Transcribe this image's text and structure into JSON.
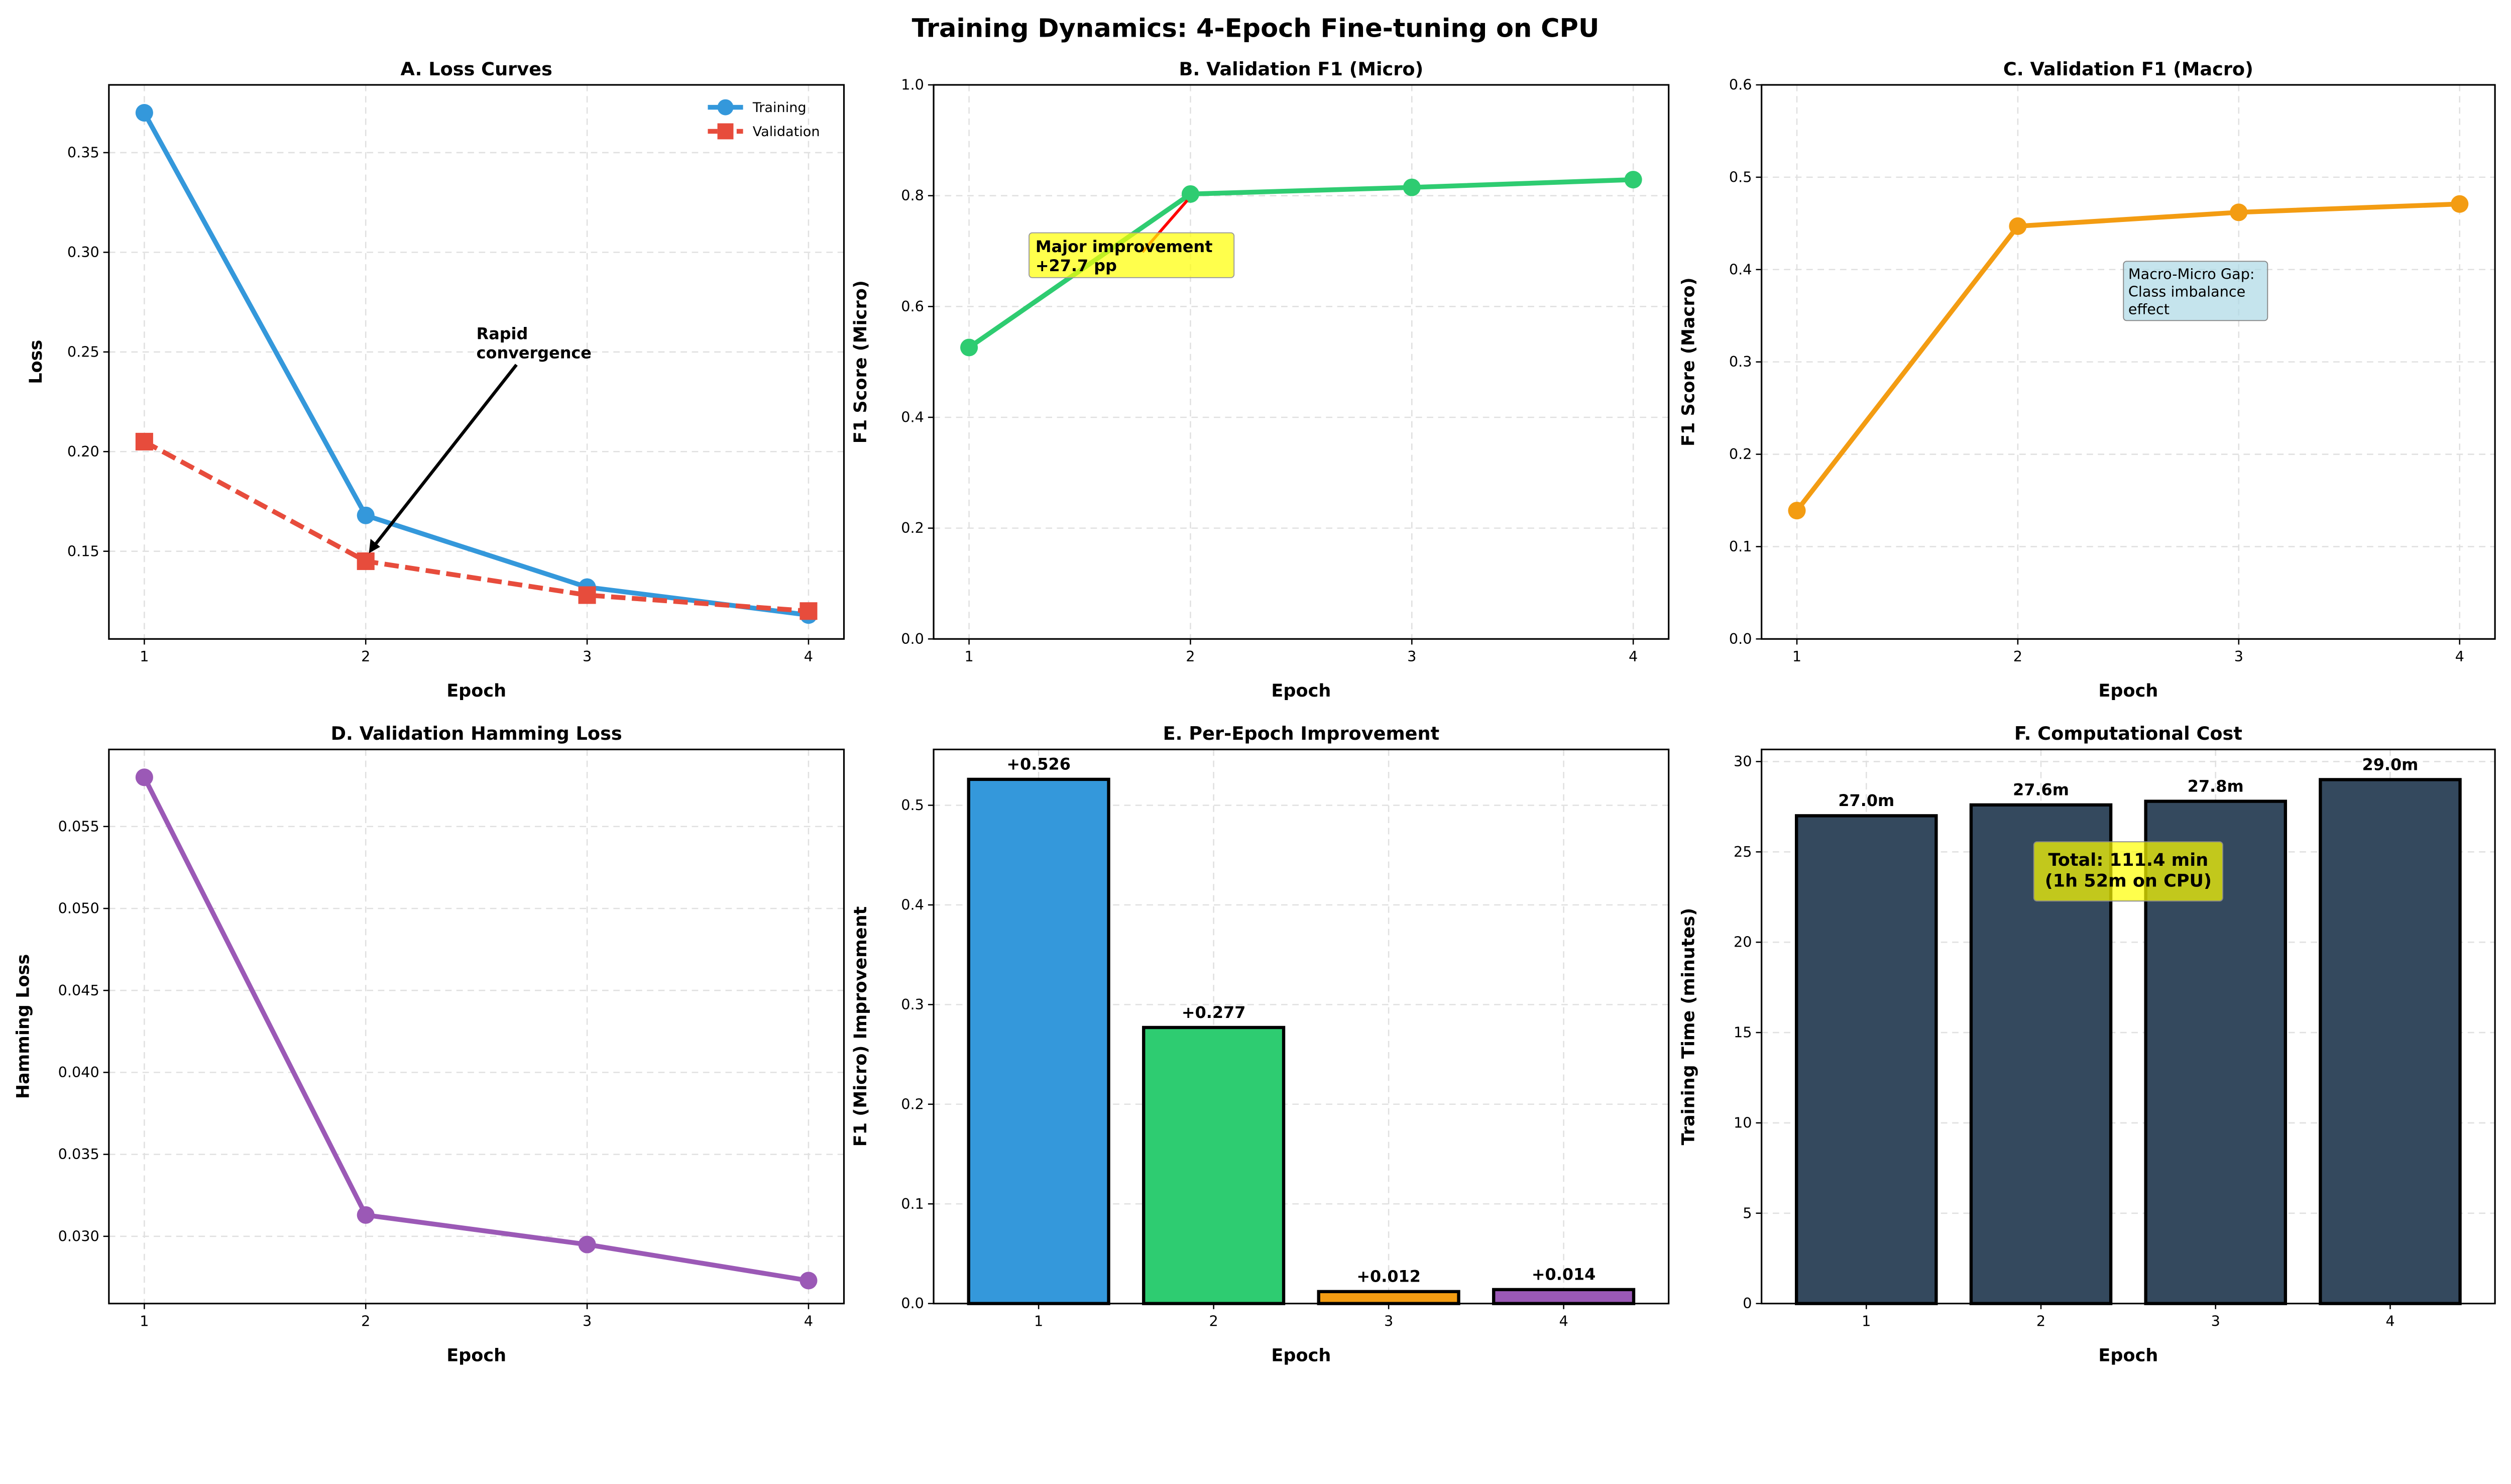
{
  "suptitle": "Training Dynamics: 4-Epoch Fine-tuning on CPU",
  "chart_data": [
    {
      "id": "A",
      "type": "line",
      "title": "A. Loss Curves",
      "xlabel": "Epoch",
      "ylabel": "Loss",
      "x": [
        1,
        2,
        3,
        4
      ],
      "xlim": [
        0.84,
        4.16
      ],
      "ylim": [
        0.106,
        0.384
      ],
      "yticks": [
        0.15,
        0.2,
        0.25,
        0.3,
        0.35
      ],
      "ytick_labels": [
        "0.15",
        "0.20",
        "0.25",
        "0.30",
        "0.35"
      ],
      "series": [
        {
          "name": "Training",
          "values": [
            0.37,
            0.168,
            0.132,
            0.118
          ],
          "color": "#3498db",
          "marker": "circle",
          "dash": false
        },
        {
          "name": "Validation",
          "values": [
            0.205,
            0.145,
            0.128,
            0.12
          ],
          "color": "#e74c3c",
          "marker": "square",
          "dash": true
        }
      ],
      "legend": "top-right",
      "annotation": {
        "text": [
          "Rapid",
          "convergence"
        ],
        "xy": [
          2,
          0.145
        ],
        "xytext": [
          2.5,
          0.25
        ],
        "style": "arrow"
      }
    },
    {
      "id": "B",
      "type": "line",
      "title": "B. Validation F1 (Micro)",
      "xlabel": "Epoch",
      "ylabel": "F1 Score (Micro)",
      "x": [
        1,
        2,
        3,
        4
      ],
      "xlim": [
        0.84,
        4.16
      ],
      "ylim": [
        0,
        1.0
      ],
      "yticks": [
        0,
        0.2,
        0.4,
        0.6,
        0.8,
        1.0
      ],
      "ytick_labels": [
        "0.0",
        "0.2",
        "0.4",
        "0.6",
        "0.8",
        "1.0"
      ],
      "series": [
        {
          "name": "F1 Micro",
          "values": [
            0.526,
            0.803,
            0.815,
            0.829
          ],
          "color": "#2ecc71",
          "marker": "circle",
          "dash": false
        }
      ],
      "annotation": {
        "text": [
          "Major improvement",
          "+27.7 pp"
        ],
        "xy": [
          2,
          0.803
        ],
        "xytext": [
          1.3,
          0.655
        ],
        "style": "yellow-box"
      }
    },
    {
      "id": "C",
      "type": "line",
      "title": "C. Validation F1 (Macro)",
      "xlabel": "Epoch",
      "ylabel": "F1 Score (Macro)",
      "x": [
        1,
        2,
        3,
        4
      ],
      "xlim": [
        0.84,
        4.16
      ],
      "ylim": [
        0,
        0.6
      ],
      "yticks": [
        0,
        0.1,
        0.2,
        0.3,
        0.4,
        0.5,
        0.6
      ],
      "ytick_labels": [
        "0.0",
        "0.1",
        "0.2",
        "0.3",
        "0.4",
        "0.5",
        "0.6"
      ],
      "series": [
        {
          "name": "F1 Macro",
          "values": [
            0.139,
            0.447,
            0.462,
            0.471
          ],
          "color": "#f39c12",
          "marker": "circle",
          "dash": false
        }
      ],
      "annotation": {
        "text": [
          "Macro-Micro Gap:",
          "Class imbalance",
          "effect"
        ],
        "xytext": [
          2.5,
          0.35
        ],
        "style": "blue-box"
      }
    },
    {
      "id": "D",
      "type": "line",
      "title": "D. Validation Hamming Loss",
      "xlabel": "Epoch",
      "ylabel": "Hamming Loss",
      "x": [
        1,
        2,
        3,
        4
      ],
      "xlim": [
        0.84,
        4.16
      ],
      "ylim": [
        0.0259,
        0.0597
      ],
      "yticks": [
        0.03,
        0.035,
        0.04,
        0.045,
        0.05,
        0.055
      ],
      "ytick_labels": [
        "0.030",
        "0.035",
        "0.040",
        "0.045",
        "0.050",
        "0.055"
      ],
      "series": [
        {
          "name": "Hamming Loss",
          "values": [
            0.058,
            0.0313,
            0.0295,
            0.0273
          ],
          "color": "#9b59b6",
          "marker": "circle",
          "dash": false
        }
      ]
    },
    {
      "id": "E",
      "type": "bar",
      "title": "E. Per-Epoch Improvement",
      "xlabel": "Epoch",
      "ylabel": "F1 (Micro) Improvement",
      "categories": [
        "1",
        "2",
        "3",
        "4"
      ],
      "values": [
        0.526,
        0.277,
        0.012,
        0.014
      ],
      "labels": [
        "+0.526",
        "+0.277",
        "+0.012",
        "+0.014"
      ],
      "colors": [
        "#3498db",
        "#2ecc71",
        "#f39c12",
        "#9b59b6"
      ],
      "xlim": [
        0.4,
        4.6
      ],
      "ylim": [
        0,
        0.556
      ],
      "yticks": [
        0,
        0.1,
        0.2,
        0.3,
        0.4,
        0.5
      ],
      "ytick_labels": [
        "0.0",
        "0.1",
        "0.2",
        "0.3",
        "0.4",
        "0.5"
      ]
    },
    {
      "id": "F",
      "type": "bar",
      "title": "F. Computational Cost",
      "xlabel": "Epoch",
      "ylabel": "Training Time (minutes)",
      "categories": [
        "1",
        "2",
        "3",
        "4"
      ],
      "values": [
        27.0,
        27.6,
        27.8,
        29.0
      ],
      "labels": [
        "27.0m",
        "27.6m",
        "27.8m",
        "29.0m"
      ],
      "colors": [
        "#34495e",
        "#34495e",
        "#34495e",
        "#34495e"
      ],
      "xlim": [
        0.4,
        4.6
      ],
      "ylim": [
        0,
        30.67
      ],
      "yticks": [
        0,
        5,
        10,
        15,
        20,
        25,
        30
      ],
      "ytick_labels": [
        "0",
        "5",
        "10",
        "15",
        "20",
        "25",
        "30"
      ],
      "annotation": {
        "text": [
          "Total: 111.4 min",
          "(1h 52m on CPU)"
        ],
        "xytext": [
          2.5,
          26.8
        ],
        "style": "yellow-box-center"
      }
    }
  ]
}
